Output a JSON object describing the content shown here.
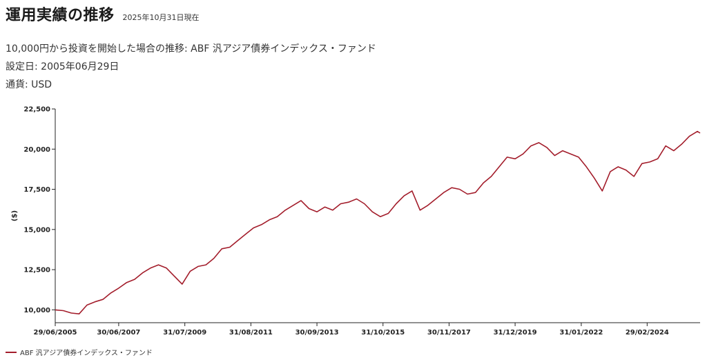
{
  "header": {
    "title": "運用実績の推移",
    "as_of": "2025年10月31日現在"
  },
  "info": {
    "line1": "10,000円から投資を開始した場合の推移: ABF 汎アジア債券インデックス・ファンド",
    "line2": "設定日: 2005年06月29日",
    "line3": "通貨: USD"
  },
  "colors": {
    "series": "#a31d2b",
    "axis": "#222222"
  },
  "chart_data": {
    "type": "line",
    "title": "",
    "xlabel": "",
    "ylabel": "($)",
    "ylim": [
      9200,
      22500
    ],
    "grid": false,
    "legend_position": "bottom-left",
    "y_ticks": [
      {
        "value": 10000,
        "label": "10,000"
      },
      {
        "value": 12500,
        "label": "12,500"
      },
      {
        "value": 15000,
        "label": "15,000"
      },
      {
        "value": 17500,
        "label": "17,500"
      },
      {
        "value": 20000,
        "label": "20,000"
      },
      {
        "value": 22500,
        "label": "22,500"
      }
    ],
    "x_ticks": [
      {
        "date": "2005-06-29",
        "label": "29/06/2005"
      },
      {
        "date": "2007-06-30",
        "label": "30/06/2007"
      },
      {
        "date": "2009-07-31",
        "label": "31/07/2009"
      },
      {
        "date": "2011-08-31",
        "label": "31/08/2011"
      },
      {
        "date": "2013-09-30",
        "label": "30/09/2013"
      },
      {
        "date": "2015-10-31",
        "label": "31/10/2015"
      },
      {
        "date": "2017-11-30",
        "label": "30/11/2017"
      },
      {
        "date": "2019-12-31",
        "label": "31/12/2019"
      },
      {
        "date": "2022-01-31",
        "label": "31/01/2022"
      },
      {
        "date": "2024-02-29",
        "label": "29/02/2024"
      }
    ],
    "x_range": [
      "2005-06-29",
      "2025-10-31"
    ],
    "series": [
      {
        "name": "ABF 汎アジア債券インデックス・ファンド",
        "points": [
          [
            "2005-06-29",
            10000
          ],
          [
            "2005-09-30",
            9950
          ],
          [
            "2005-12-31",
            9800
          ],
          [
            "2006-03-31",
            9750
          ],
          [
            "2006-06-30",
            10300
          ],
          [
            "2006-09-30",
            10500
          ],
          [
            "2006-12-31",
            10650
          ],
          [
            "2007-03-31",
            11050
          ],
          [
            "2007-06-30",
            11350
          ],
          [
            "2007-09-30",
            11700
          ],
          [
            "2007-12-31",
            11900
          ],
          [
            "2008-03-31",
            12300
          ],
          [
            "2008-06-30",
            12600
          ],
          [
            "2008-09-30",
            12800
          ],
          [
            "2008-12-31",
            12600
          ],
          [
            "2009-03-31",
            12100
          ],
          [
            "2009-06-30",
            11600
          ],
          [
            "2009-09-30",
            12400
          ],
          [
            "2009-12-31",
            12700
          ],
          [
            "2010-03-31",
            12800
          ],
          [
            "2010-06-30",
            13200
          ],
          [
            "2010-09-30",
            13800
          ],
          [
            "2010-12-31",
            13900
          ],
          [
            "2011-03-31",
            14300
          ],
          [
            "2011-06-30",
            14700
          ],
          [
            "2011-09-30",
            15100
          ],
          [
            "2011-12-31",
            15300
          ],
          [
            "2012-03-31",
            15600
          ],
          [
            "2012-06-30",
            15800
          ],
          [
            "2012-09-30",
            16200
          ],
          [
            "2012-12-31",
            16500
          ],
          [
            "2013-03-31",
            16800
          ],
          [
            "2013-06-30",
            16300
          ],
          [
            "2013-09-30",
            16100
          ],
          [
            "2013-12-31",
            16400
          ],
          [
            "2014-03-31",
            16200
          ],
          [
            "2014-06-30",
            16600
          ],
          [
            "2014-09-30",
            16700
          ],
          [
            "2014-12-31",
            16900
          ],
          [
            "2015-03-31",
            16600
          ],
          [
            "2015-06-30",
            16100
          ],
          [
            "2015-09-30",
            15800
          ],
          [
            "2015-12-31",
            16000
          ],
          [
            "2016-03-31",
            16600
          ],
          [
            "2016-06-30",
            17100
          ],
          [
            "2016-09-30",
            17400
          ],
          [
            "2016-12-31",
            16200
          ],
          [
            "2017-03-31",
            16500
          ],
          [
            "2017-06-30",
            16900
          ],
          [
            "2017-09-30",
            17300
          ],
          [
            "2017-12-31",
            17600
          ],
          [
            "2018-03-31",
            17500
          ],
          [
            "2018-06-30",
            17200
          ],
          [
            "2018-09-30",
            17300
          ],
          [
            "2018-12-31",
            17900
          ],
          [
            "2019-03-31",
            18300
          ],
          [
            "2019-06-30",
            18900
          ],
          [
            "2019-09-30",
            19500
          ],
          [
            "2019-12-31",
            19400
          ],
          [
            "2020-03-31",
            19700
          ],
          [
            "2020-06-30",
            20200
          ],
          [
            "2020-09-30",
            20400
          ],
          [
            "2020-12-31",
            20100
          ],
          [
            "2021-03-31",
            19600
          ],
          [
            "2021-06-30",
            19900
          ],
          [
            "2021-09-30",
            19700
          ],
          [
            "2021-12-31",
            19500
          ],
          [
            "2022-03-31",
            18900
          ],
          [
            "2022-06-30",
            18200
          ],
          [
            "2022-09-30",
            17400
          ],
          [
            "2022-12-31",
            18600
          ],
          [
            "2023-03-31",
            18900
          ],
          [
            "2023-06-30",
            18700
          ],
          [
            "2023-09-30",
            18300
          ],
          [
            "2023-12-31",
            19100
          ],
          [
            "2024-03-31",
            19200
          ],
          [
            "2024-06-30",
            19400
          ],
          [
            "2024-09-30",
            20200
          ],
          [
            "2024-12-31",
            19900
          ],
          [
            "2025-03-31",
            20300
          ],
          [
            "2025-06-30",
            20800
          ],
          [
            "2025-09-30",
            21100
          ],
          [
            "2025-10-31",
            21000
          ]
        ]
      }
    ]
  }
}
